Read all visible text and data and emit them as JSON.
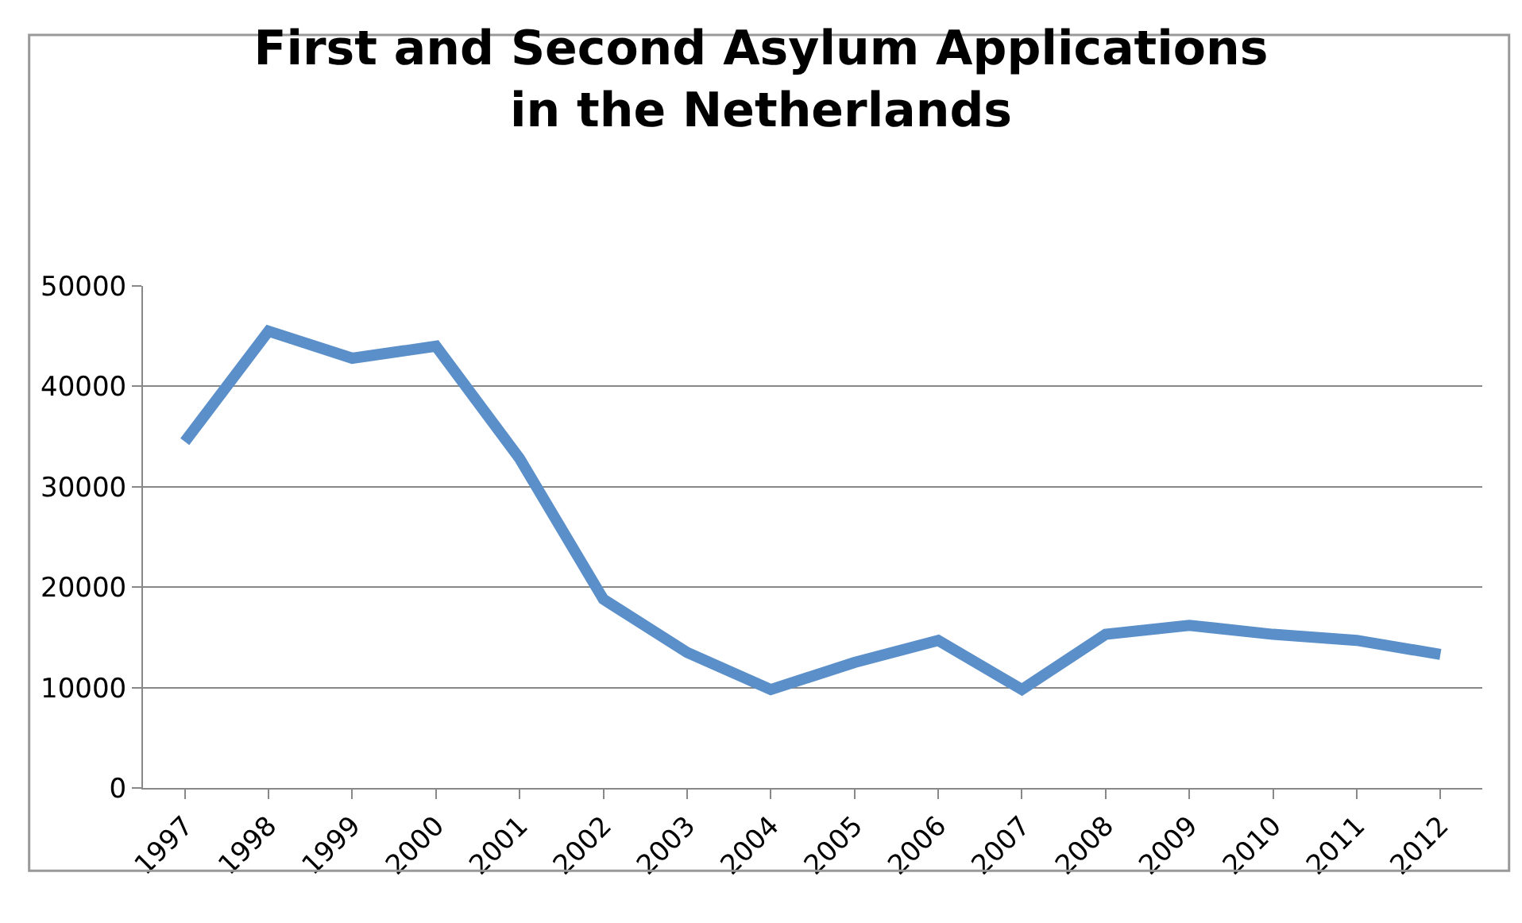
{
  "chart_data": {
    "type": "line",
    "title": "First and Second Asylum Applications\nin the Netherlands",
    "categories": [
      "1997",
      "1998",
      "1999",
      "2000",
      "2001",
      "2002",
      "2003",
      "2004",
      "2005",
      "2006",
      "2007",
      "2008",
      "2009",
      "2010",
      "2011",
      "2012"
    ],
    "series": [
      {
        "color": "#5b8fc9",
        "values": [
          34500,
          45500,
          42800,
          44000,
          32800,
          18800,
          13500,
          9800,
          12500,
          14700,
          9800,
          15300,
          16200,
          15300,
          14700,
          13300
        ]
      }
    ],
    "ylim": [
      0,
      50000
    ],
    "yticks": [
      0,
      10000,
      20000,
      30000,
      40000,
      50000
    ],
    "grid": "y",
    "marker": "none",
    "line_style": "solid"
  }
}
